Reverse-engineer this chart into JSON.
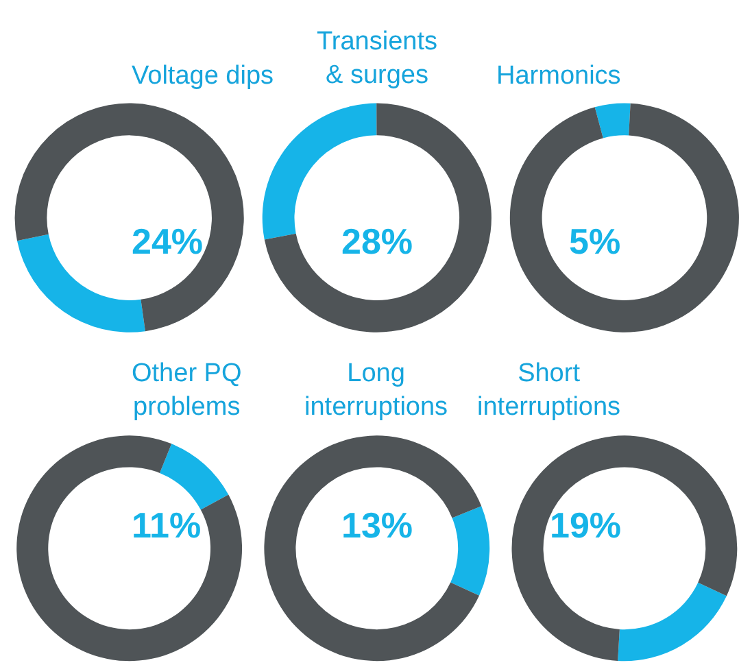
{
  "chart_data": [
    {
      "type": "donut",
      "title": "Voltage dips",
      "categories": [
        null,
        null
      ],
      "values": [
        24,
        76
      ],
      "colors": [
        "#16b4e8",
        "#4f5457"
      ],
      "annotations": [
        "24%"
      ]
    },
    {
      "type": "donut",
      "title": "Transients\n& surges",
      "categories": [
        null,
        null
      ],
      "values": [
        28,
        72
      ],
      "colors": [
        "#16b4e8",
        "#4f5457"
      ],
      "annotations": [
        "28%"
      ]
    },
    {
      "type": "donut",
      "title": "Harmonics",
      "categories": [
        null,
        null
      ],
      "values": [
        5,
        95
      ],
      "colors": [
        "#16b4e8",
        "#4f5457"
      ],
      "annotations": [
        "5%"
      ]
    },
    {
      "type": "donut",
      "title": "Other PQ\nproblems",
      "categories": [
        null,
        null
      ],
      "values": [
        11,
        89
      ],
      "colors": [
        "#16b4e8",
        "#4f5457"
      ],
      "annotations": [
        "11%"
      ]
    },
    {
      "type": "donut",
      "title": "Long\ninterruptions",
      "categories": [
        null,
        null
      ],
      "values": [
        13,
        87
      ],
      "colors": [
        "#16b4e8",
        "#4f5457"
      ],
      "annotations": [
        "13%"
      ]
    },
    {
      "type": "donut",
      "title": "Short\ninterruptions",
      "categories": [
        null,
        null
      ],
      "values": [
        19,
        81
      ],
      "colors": [
        "#16b4e8",
        "#4f5457"
      ],
      "annotations": [
        "19%"
      ]
    }
  ]
}
